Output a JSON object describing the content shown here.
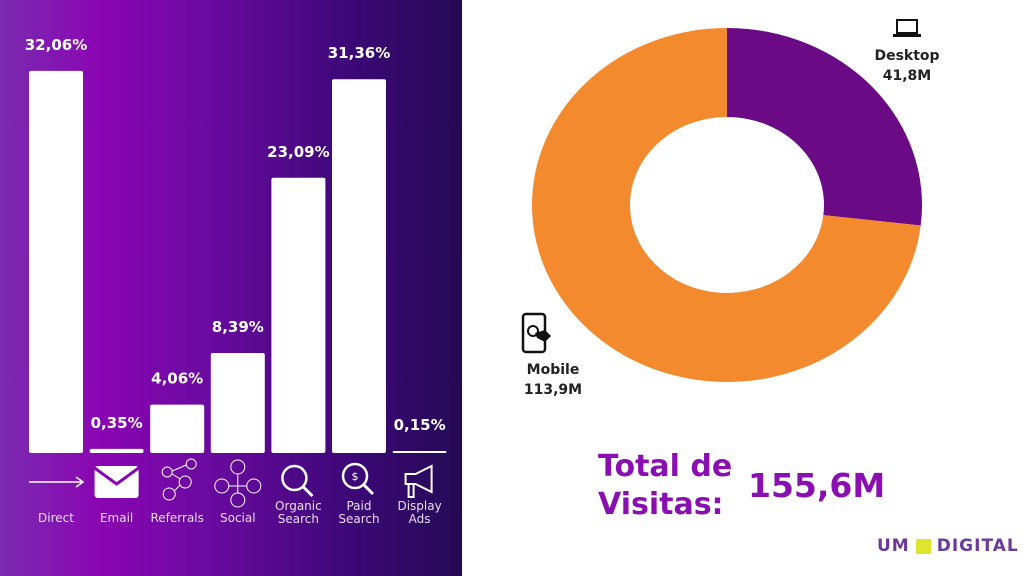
{
  "chart_data": [
    {
      "type": "bar",
      "categories": [
        "Direct",
        "Email",
        "Referrals",
        "Social",
        "Organic Search",
        "Paid Search",
        "Display Ads"
      ],
      "category_lines": [
        [
          "Direct"
        ],
        [
          "Email"
        ],
        [
          "Referrals"
        ],
        [
          "Social"
        ],
        [
          "Organic",
          "Search"
        ],
        [
          "Paid",
          "Search"
        ],
        [
          "Display",
          "Ads"
        ]
      ],
      "values": [
        32.06,
        0.35,
        4.06,
        8.39,
        23.09,
        31.36,
        0.15
      ],
      "data_labels": [
        "32,06%",
        "0,35%",
        "4,06%",
        "8,39%",
        "23,09%",
        "31,36%",
        "0,15%"
      ],
      "icons": [
        "arrow-right-icon",
        "envelope-icon",
        "share-network-icon",
        "social-network-icon",
        "search-icon",
        "paid-search-icon",
        "megaphone-icon"
      ],
      "bar_color": "#ffffff",
      "grid": false
    },
    {
      "type": "pie",
      "donut": true,
      "slices": [
        {
          "label": "Desktop",
          "value": 41.8,
          "display": "41,8M",
          "color": "#6a0a85",
          "icon": "laptop-icon"
        },
        {
          "label": "Mobile",
          "value": 113.9,
          "display": "113,9M",
          "color": "#f48a2e",
          "icon": "mobile-touch-icon"
        }
      ]
    }
  ],
  "total": {
    "label_line1": "Total de",
    "label_line2": "Visitas:",
    "value": "155,6M"
  },
  "logo": {
    "left": "UM",
    "right": "DIGITAL",
    "square_color": "#dde52e"
  }
}
